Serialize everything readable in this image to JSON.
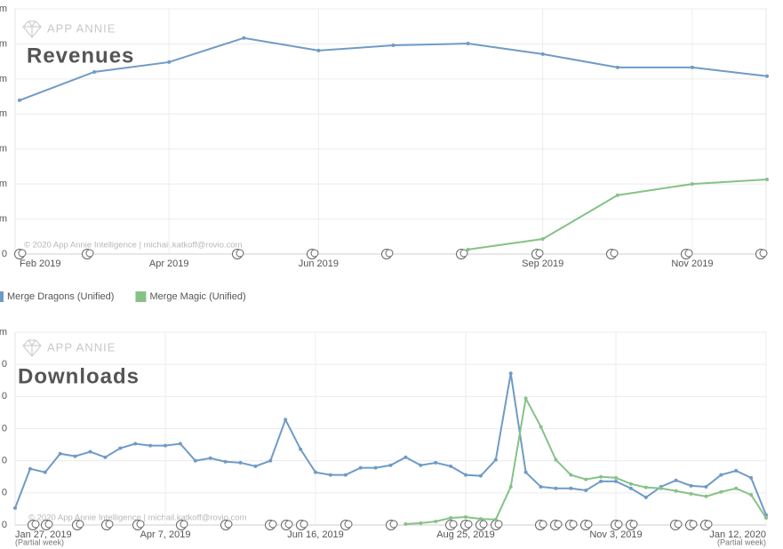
{
  "chart_data": [
    {
      "type": "line",
      "title": "Revenues",
      "watermark": "APP ANNIE",
      "copyright": "© 2020 App Annie Intelligence | michail.katkoff@rovio.com",
      "categories": [
        "Feb 2019",
        null,
        "Apr 2019",
        null,
        "Jun 2019",
        null,
        null,
        "Sep 2019",
        null,
        "Nov 2019",
        null
      ],
      "series": [
        {
          "name": "Merge Dragons (Unified)",
          "color": "#6f9bc6",
          "values": [
            4.39,
            5.2,
            5.48,
            6.17,
            5.81,
            5.96,
            6.01,
            5.71,
            5.33,
            5.33,
            5.08
          ]
        },
        {
          "name": "Merge Magic (Unified)",
          "color": "#86c288",
          "values": [
            null,
            null,
            null,
            null,
            null,
            null,
            0.13,
            0.43,
            1.68,
            2.0,
            2.13
          ]
        }
      ],
      "ylim": [
        0,
        7
      ],
      "yticks": [
        0,
        {
          "value": 1,
          "label": "m"
        },
        {
          "value": 2,
          "label": "m"
        },
        {
          "value": 3,
          "label": "m"
        },
        {
          "value": 4,
          "label": "m"
        },
        {
          "value": 5,
          "label": "m"
        },
        {
          "value": 6,
          "label": "m"
        },
        {
          "value": 7,
          "label": "m"
        }
      ],
      "grid": true
    },
    {
      "type": "line",
      "title": "Downloads",
      "watermark": "APP ANNIE",
      "copyright": "© 2020 App Annie Intelligence | michail.katkoff@rovio.com",
      "first_week_note": "(Partial week)",
      "last_week_note": "(Partial week)",
      "categories": [
        "Jan 27, 2019",
        null,
        null,
        null,
        null,
        null,
        null,
        null,
        null,
        null,
        "Apr 7, 2019",
        null,
        null,
        null,
        null,
        null,
        null,
        null,
        null,
        null,
        "Jun 16, 2019",
        null,
        null,
        null,
        null,
        null,
        null,
        null,
        null,
        null,
        "Aug 25, 2019",
        null,
        null,
        null,
        null,
        null,
        null,
        null,
        null,
        null,
        "Nov 3, 2019",
        null,
        null,
        null,
        null,
        null,
        null,
        null,
        null,
        null,
        "Jan 12, 2020"
      ],
      "series": [
        {
          "name": "Merge Dragons (Unified)",
          "color": "#6f9bc6",
          "values": [
            0.53,
            1.75,
            1.64,
            2.22,
            2.14,
            2.28,
            2.11,
            2.39,
            2.53,
            2.47,
            2.47,
            2.53,
            2.0,
            2.08,
            1.97,
            1.94,
            1.83,
            2.0,
            3.28,
            2.36,
            1.64,
            1.56,
            1.56,
            1.78,
            1.78,
            1.86,
            2.11,
            1.86,
            1.94,
            1.83,
            1.56,
            1.53,
            2.03,
            4.72,
            1.64,
            1.19,
            1.14,
            1.14,
            1.08,
            1.36,
            1.36,
            1.14,
            0.86,
            1.19,
            1.39,
            1.22,
            1.19,
            1.56,
            1.69,
            1.47,
            0.31
          ]
        },
        {
          "name": "Merge Magic (Unified)",
          "color": "#86c288",
          "values": [
            null,
            null,
            null,
            null,
            null,
            null,
            null,
            null,
            null,
            null,
            null,
            null,
            null,
            null,
            null,
            null,
            null,
            null,
            null,
            null,
            null,
            null,
            null,
            null,
            null,
            null,
            0.03,
            0.06,
            0.11,
            0.22,
            0.25,
            0.19,
            0.17,
            1.19,
            3.94,
            3.06,
            2.03,
            1.56,
            1.42,
            1.5,
            1.47,
            1.28,
            1.17,
            1.14,
            1.06,
            0.97,
            0.89,
            1.03,
            1.14,
            0.94,
            0.22
          ]
        }
      ],
      "ylim": [
        0,
        6
      ],
      "yticks": [
        0,
        {
          "value": 1,
          "label": "0"
        },
        {
          "value": 2,
          "label": "0"
        },
        {
          "value": 3,
          "label": "0"
        },
        {
          "value": 4,
          "label": "0"
        },
        {
          "value": 5,
          "label": "0"
        },
        {
          "value": 6,
          "label": "m"
        }
      ],
      "grid": true
    }
  ]
}
